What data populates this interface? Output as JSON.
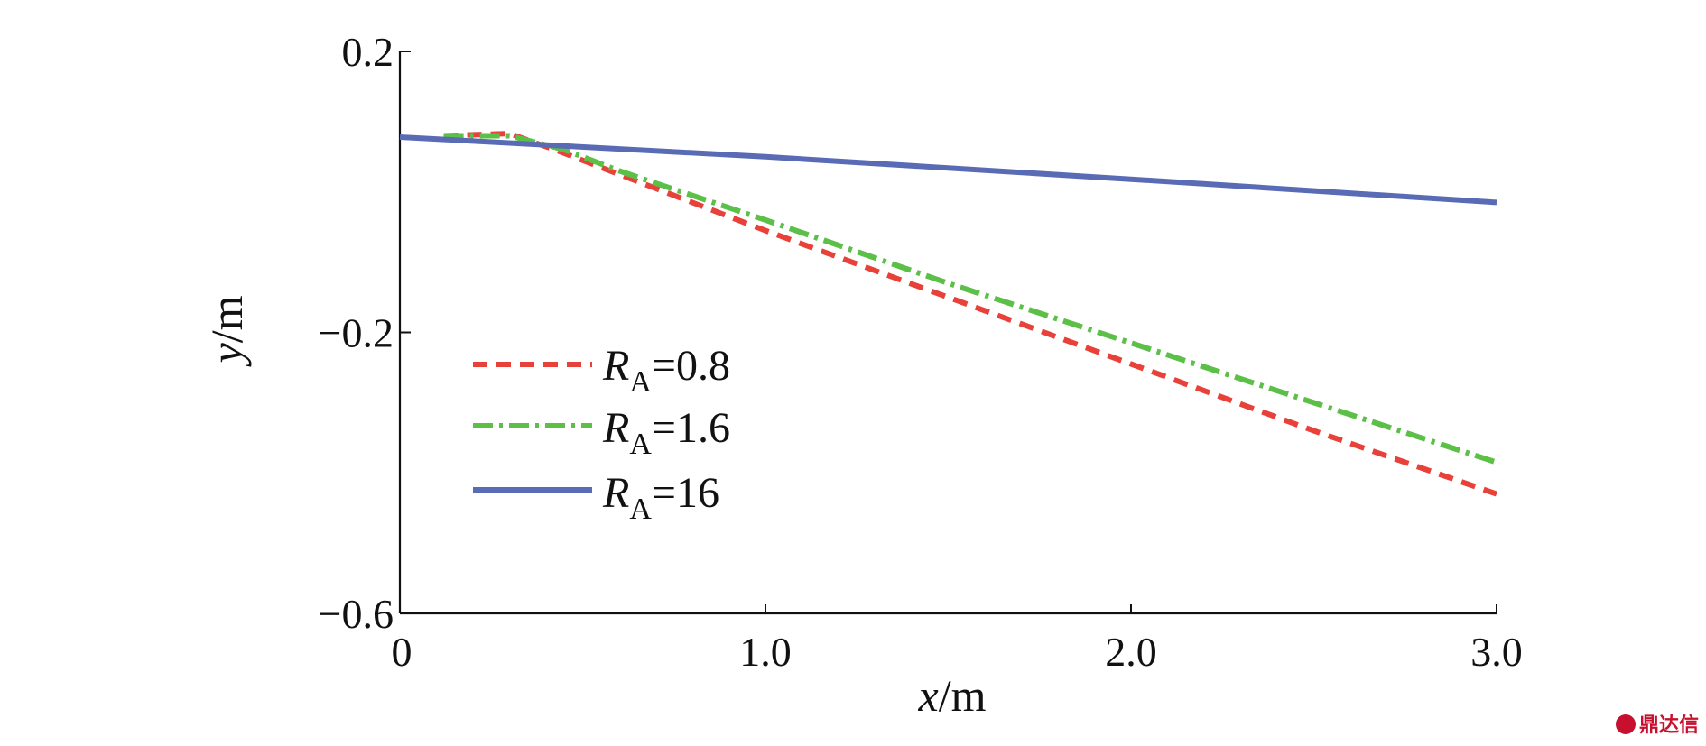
{
  "chart_data": {
    "type": "line",
    "xlabel": {
      "var": "x",
      "unit": "/m"
    },
    "ylabel": {
      "var": "y",
      "unit": "/m"
    },
    "xlim": [
      0,
      3.0
    ],
    "ylim": [
      -0.6,
      0.2
    ],
    "xticks": [
      0,
      1.0,
      2.0,
      3.0
    ],
    "xtick_labels": [
      "0",
      "1.0",
      "2.0",
      "3.0"
    ],
    "yticks": [
      0.2,
      -0.2,
      -0.6
    ],
    "ytick_labels": [
      "0.2",
      "−0.2",
      "−0.6"
    ],
    "grid": false,
    "legend_position": "lower-left",
    "series": [
      {
        "name": "R_A=0.8",
        "legend": {
          "var": "R",
          "sub": "A",
          "value": "=0.8"
        },
        "color": "#e8413a",
        "style": "dashed",
        "x": [
          0.12,
          0.3,
          0.45,
          0.6,
          1.0,
          1.5,
          2.0,
          2.5,
          3.0
        ],
        "y": [
          0.08,
          0.083,
          0.055,
          0.025,
          -0.055,
          -0.15,
          -0.245,
          -0.34,
          -0.43
        ]
      },
      {
        "name": "R_A=1.6",
        "legend": {
          "var": "R",
          "sub": "A",
          "value": "=1.6"
        },
        "color": "#5cc048",
        "style": "dashdot",
        "x": [
          0.12,
          0.3,
          0.45,
          0.6,
          1.0,
          1.5,
          2.0,
          2.5,
          3.0
        ],
        "y": [
          0.08,
          0.08,
          0.06,
          0.03,
          -0.04,
          -0.13,
          -0.215,
          -0.3,
          -0.385
        ]
      },
      {
        "name": "R_A=16",
        "legend": {
          "var": "R",
          "sub": "A",
          "value": "=16"
        },
        "color": "#5a6bb5",
        "style": "solid",
        "x": [
          0,
          1.0,
          2.0,
          3.0
        ],
        "y": [
          0.078,
          0.05,
          0.018,
          -0.015
        ]
      }
    ]
  },
  "watermark": {
    "text": "鼎达信"
  }
}
